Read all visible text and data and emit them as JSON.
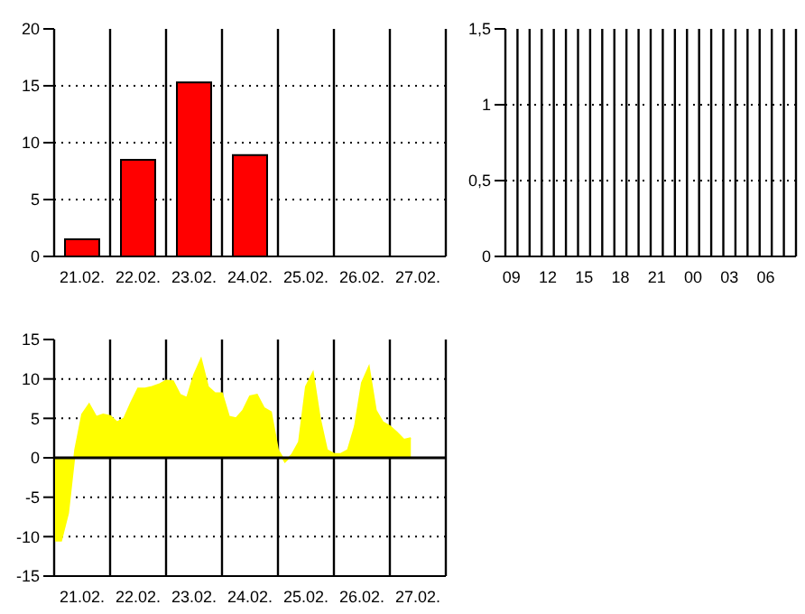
{
  "chart_data": [
    {
      "type": "bar",
      "categories": [
        "21.02.",
        "22.02.",
        "23.02.",
        "24.02.",
        "25.02.",
        "26.02.",
        "27.02."
      ],
      "values": [
        1.5,
        8.5,
        15.3,
        8.9,
        null,
        null,
        null
      ],
      "color": "#ff0000",
      "ylim": [
        0,
        20
      ],
      "yticks": [
        0,
        5,
        10,
        15,
        20
      ],
      "grid": true
    },
    {
      "type": "bar",
      "categories": [
        "09",
        null,
        null,
        "12",
        null,
        null,
        "15",
        null,
        null,
        "18",
        null,
        null,
        "21",
        null,
        null,
        "00",
        null,
        null,
        "03",
        null,
        null,
        "06",
        null,
        null
      ],
      "values": [
        0,
        0,
        0,
        0,
        0,
        0,
        0,
        0,
        0,
        0,
        0,
        0,
        0,
        0,
        0,
        0,
        0,
        0,
        0,
        0,
        0,
        0,
        0,
        0
      ],
      "color": "#ff0000",
      "ylim": [
        0,
        1.5
      ],
      "yticks": [
        0,
        {
          "value": 0.5,
          "label": "0,5"
        },
        1,
        {
          "value": 1.5,
          "label": "1,5"
        }
      ],
      "grid": true
    },
    {
      "type": "area",
      "categories": [
        null,
        null,
        null,
        null,
        "21.02.",
        null,
        null,
        null,
        null,
        null,
        null,
        null,
        "22.02.",
        null,
        null,
        null,
        null,
        null,
        null,
        null,
        "23.02.",
        null,
        null,
        null,
        null,
        null,
        null,
        null,
        "24.02.",
        null,
        null,
        null,
        null,
        null,
        null,
        null,
        "25.02.",
        null,
        null,
        null,
        null,
        null,
        null,
        null,
        "26.02.",
        null,
        null,
        null,
        null,
        null,
        null,
        null,
        "27.02.",
        null,
        null,
        null
      ],
      "values": [
        -10.5,
        -10.5,
        -7,
        1,
        5.5,
        6.8,
        5.2,
        5.5,
        5.3,
        4.5,
        5,
        7,
        8.8,
        8.8,
        9,
        9.3,
        9.8,
        9.7,
        8,
        7.6,
        10.5,
        12.5,
        9,
        8.2,
        8.2,
        5.2,
        5,
        6,
        7.8,
        8,
        6.3,
        5.8,
        1,
        -0.5,
        0.4,
        2,
        9,
        10.8,
        5,
        1,
        0.5,
        0.5,
        1,
        4,
        9.5,
        11.5,
        6,
        4.5,
        4,
        3.2,
        2.3,
        2.5,
        null,
        null,
        null,
        null
      ],
      "color": "#ffff00",
      "ylim": [
        -15,
        15
      ],
      "yticks": [
        -15,
        -10,
        -5,
        0,
        5,
        10,
        15
      ],
      "grid": true,
      "ref_lines": [
        {
          "axis": "y",
          "value": 0
        }
      ]
    }
  ]
}
